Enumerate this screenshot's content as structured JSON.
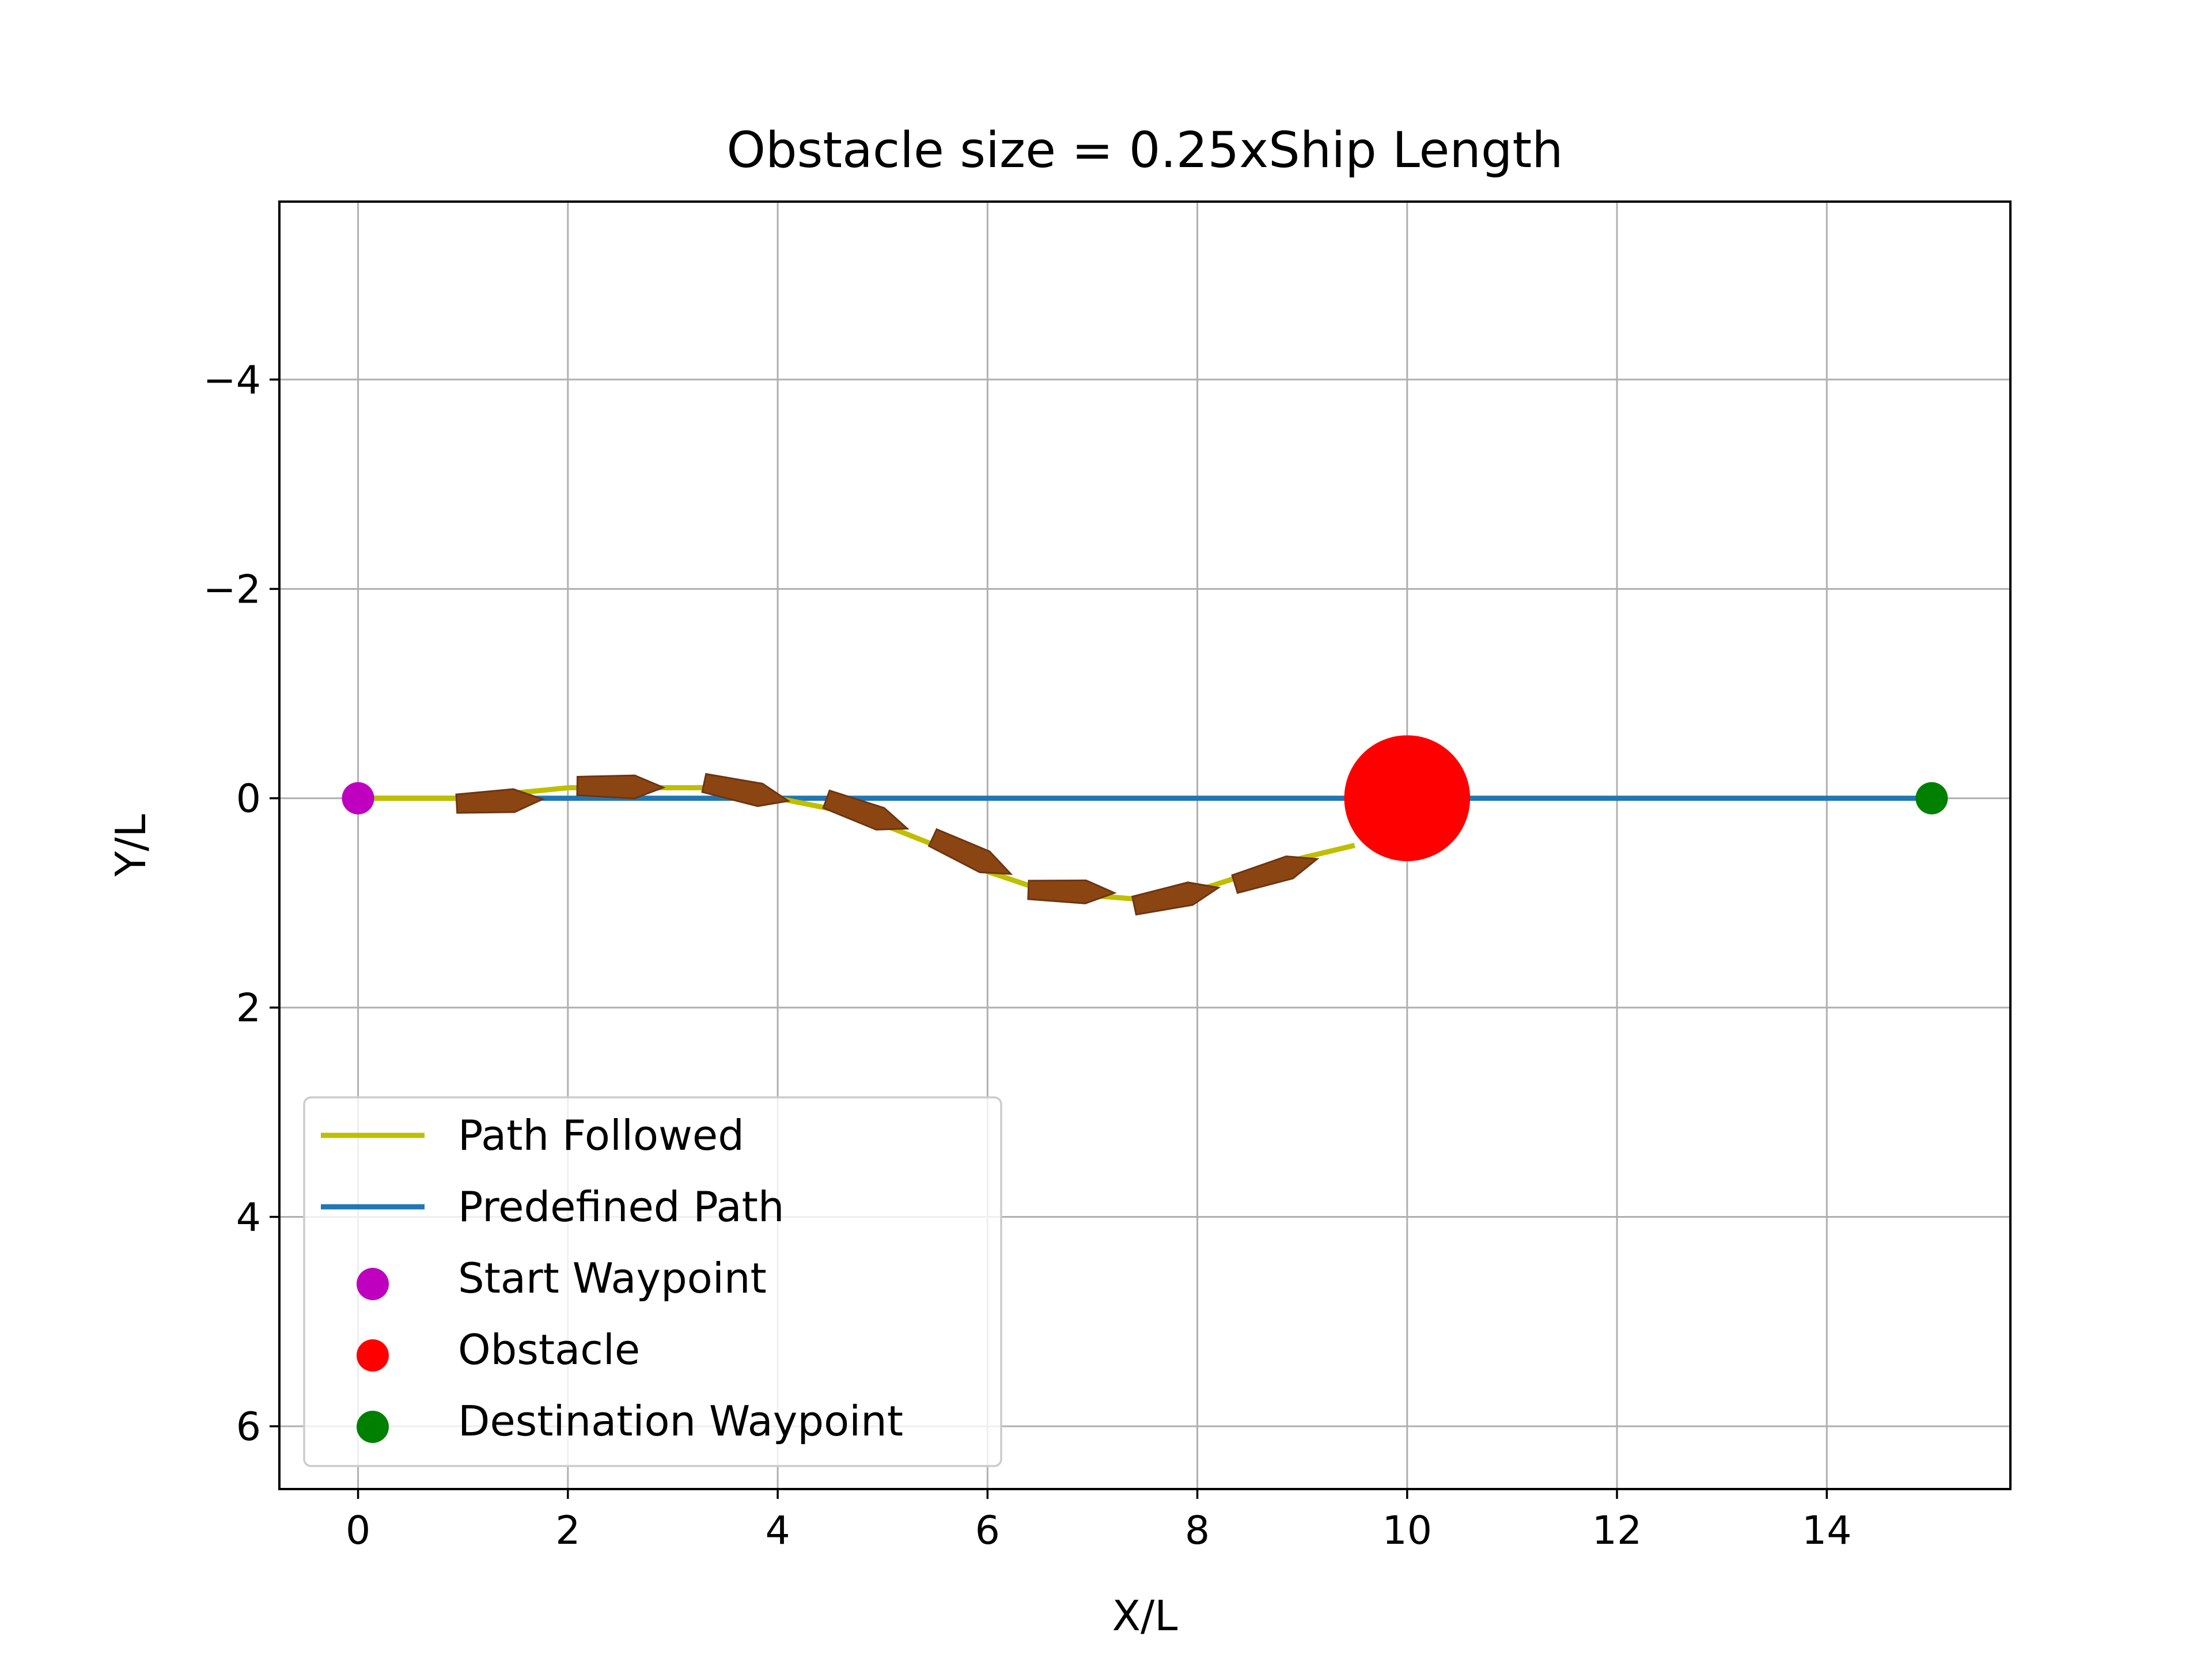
{
  "chart_data": {
    "type": "scatter",
    "title": "Obstacle size = 0.25xShip Length",
    "xlabel": "X/L",
    "ylabel": "Y/L",
    "xlim": [
      -0.75,
      15.75
    ],
    "ylim": [
      6.6,
      -5.7
    ],
    "y_inverted": true,
    "grid": true,
    "xticks": [
      0,
      2,
      4,
      6,
      8,
      10,
      12,
      14
    ],
    "yticks": [
      -4,
      -2,
      0,
      2,
      4,
      6
    ],
    "xtick_labels": [
      "0",
      "2",
      "4",
      "6",
      "8",
      "10",
      "12",
      "14"
    ],
    "ytick_labels": [
      "−4",
      "−2",
      "0",
      "2",
      "4",
      "6"
    ],
    "legend": {
      "placement": "lower-left",
      "entries": [
        {
          "label": "Path Followed",
          "kind": "line",
          "color": "#bfbf00"
        },
        {
          "label": "Predefined Path",
          "kind": "line",
          "color": "#1f77b4"
        },
        {
          "label": "Start Waypoint",
          "kind": "marker",
          "color": "#bf00bf"
        },
        {
          "label": "Obstacle",
          "kind": "marker",
          "color": "#ff0000"
        },
        {
          "label": "Destination Waypoint",
          "kind": "marker",
          "color": "#008000"
        }
      ]
    },
    "predefined_path": {
      "color": "#1f77b4",
      "x": [
        0,
        15
      ],
      "y": [
        0,
        0
      ]
    },
    "path_followed": {
      "color": "#bfbf00",
      "x": [
        0,
        0.5,
        1,
        1.5,
        2,
        2.5,
        3,
        3.5,
        4,
        4.5,
        5,
        5.5,
        6,
        6.5,
        7,
        7.5,
        8,
        8.5,
        9,
        9.5
      ],
      "y": [
        0,
        0,
        0,
        -0.05,
        -0.1,
        -0.1,
        -0.1,
        -0.1,
        0,
        0.1,
        0.25,
        0.45,
        0.7,
        0.87,
        0.93,
        0.97,
        0.88,
        0.72,
        0.57,
        0.45
      ]
    },
    "start_waypoint": {
      "x": 0,
      "y": 0,
      "color": "#bf00bf"
    },
    "destination_waypoint": {
      "x": 15,
      "y": 0,
      "color": "#008000"
    },
    "obstacle": {
      "x": 10,
      "y": 0,
      "radius": 0.6,
      "color": "#ff0000"
    },
    "ship_color": "#8b4513",
    "ship_length": 0.82,
    "ship_poses": [
      {
        "x": 1.35,
        "y": 0.03,
        "heading_deg": -3
      },
      {
        "x": 2.5,
        "y": -0.11,
        "heading_deg": 1
      },
      {
        "x": 3.7,
        "y": -0.06,
        "heading_deg": 12
      },
      {
        "x": 4.85,
        "y": 0.15,
        "heading_deg": 20
      },
      {
        "x": 5.85,
        "y": 0.55,
        "heading_deg": 25
      },
      {
        "x": 6.8,
        "y": 0.89,
        "heading_deg": 2
      },
      {
        "x": 7.8,
        "y": 0.94,
        "heading_deg": -12
      },
      {
        "x": 8.75,
        "y": 0.7,
        "heading_deg": -17
      }
    ]
  }
}
